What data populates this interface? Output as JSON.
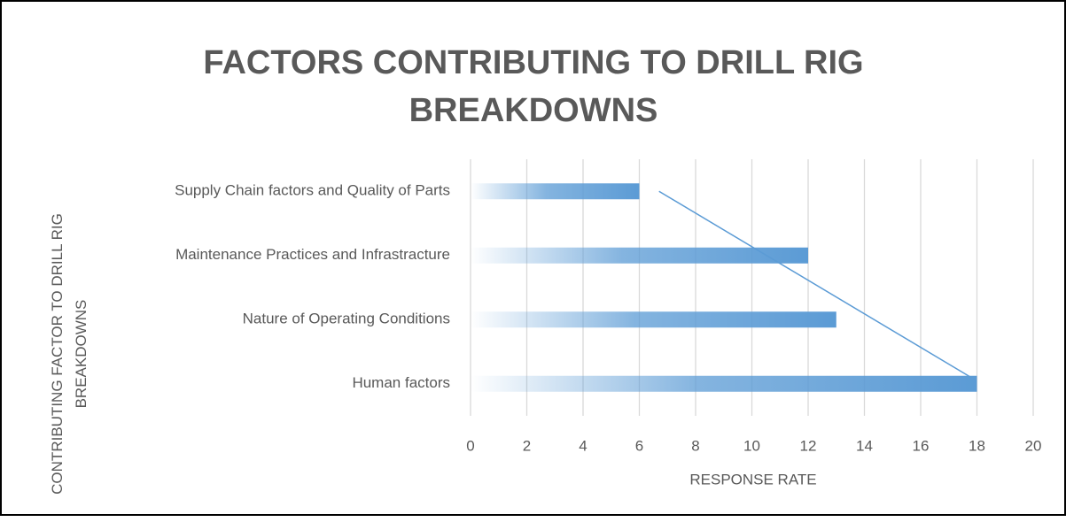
{
  "chart_data": {
    "type": "bar",
    "orientation": "horizontal",
    "title": "FACTORS CONTRIBUTING TO DRILL RIG BREAKDOWNS",
    "x_label": "RESPONSE RATE",
    "y_label": "CONTRIBUTING FACTOR TO DRILL RIG BREAKDOWNS",
    "categories": [
      "Human factors",
      "Nature of Operating Conditions",
      "Maintenance Practices and Infrastracture",
      "Supply Chain factors and Quality of Parts"
    ],
    "values": [
      18,
      13,
      12,
      6
    ],
    "color": "#5b9bd5",
    "xlim": [
      0,
      20
    ],
    "xticks": [
      0,
      2,
      4,
      6,
      8,
      10,
      12,
      14,
      16,
      18,
      20
    ],
    "grid": true,
    "trendline": "linear"
  }
}
